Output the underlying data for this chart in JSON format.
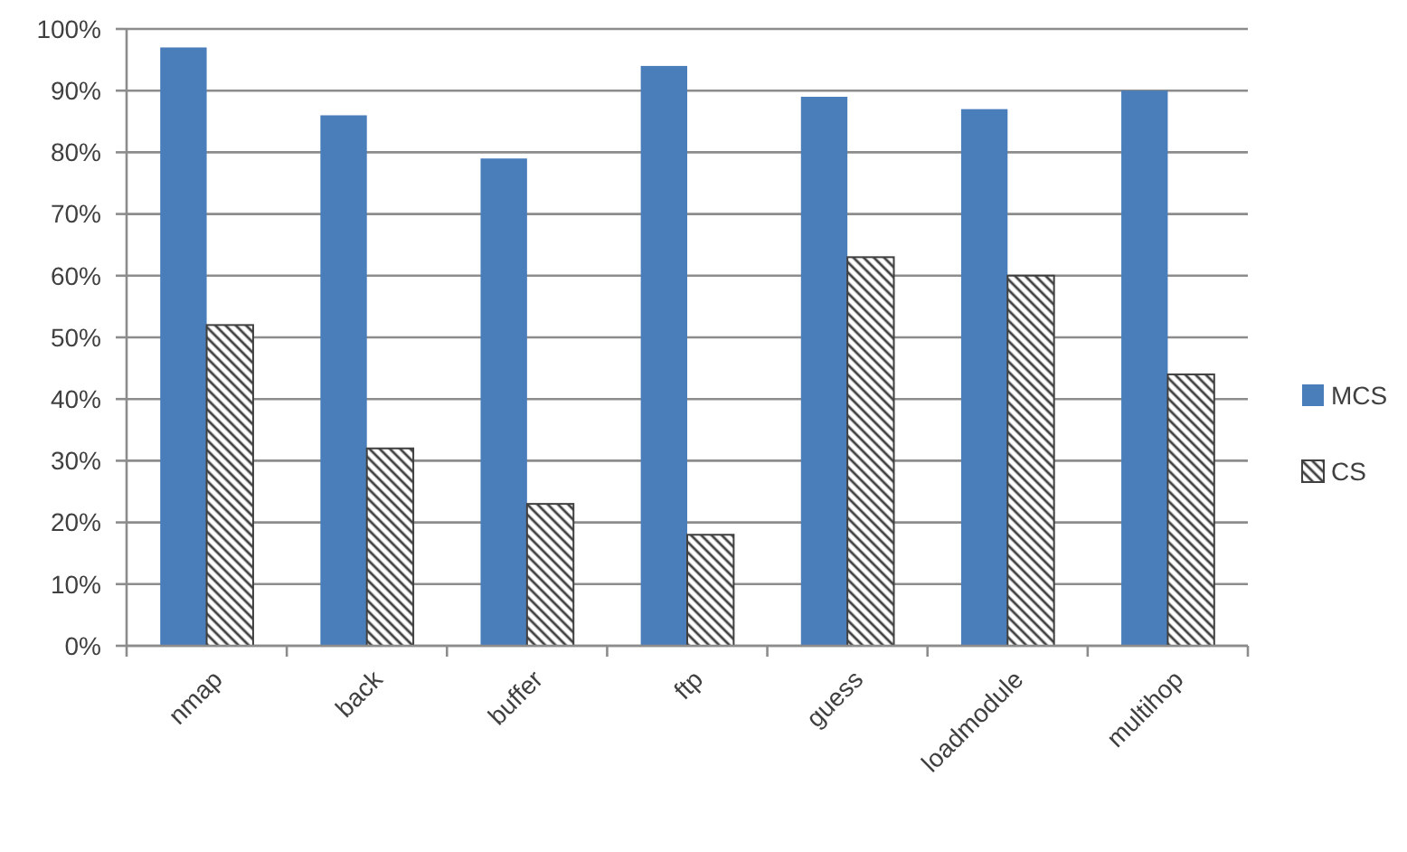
{
  "chart_data": {
    "type": "bar",
    "categories": [
      "nmap",
      "back",
      "buffer",
      "ftp",
      "guess",
      "loadmodule",
      "multihop"
    ],
    "series": [
      {
        "name": "MCS",
        "color": "#4a7ebb",
        "values": [
          97,
          86,
          79,
          94,
          89,
          87,
          90
        ]
      },
      {
        "name": "CS",
        "color": "#404040",
        "values": [
          52,
          32,
          23,
          18,
          63,
          60,
          44
        ]
      }
    ],
    "ylim": [
      0,
      100
    ],
    "yticks": [
      {
        "value": 0,
        "label": "0%"
      },
      {
        "value": 10,
        "label": "10%"
      },
      {
        "value": 20,
        "label": "20%"
      },
      {
        "value": 30,
        "label": "30%"
      },
      {
        "value": 40,
        "label": "40%"
      },
      {
        "value": 50,
        "label": "50%"
      },
      {
        "value": 60,
        "label": "60%"
      },
      {
        "value": 70,
        "label": "70%"
      },
      {
        "value": 80,
        "label": "80%"
      },
      {
        "value": 90,
        "label": "90%"
      },
      {
        "value": 100,
        "label": "100%"
      }
    ],
    "grid": true,
    "legend": "right"
  }
}
